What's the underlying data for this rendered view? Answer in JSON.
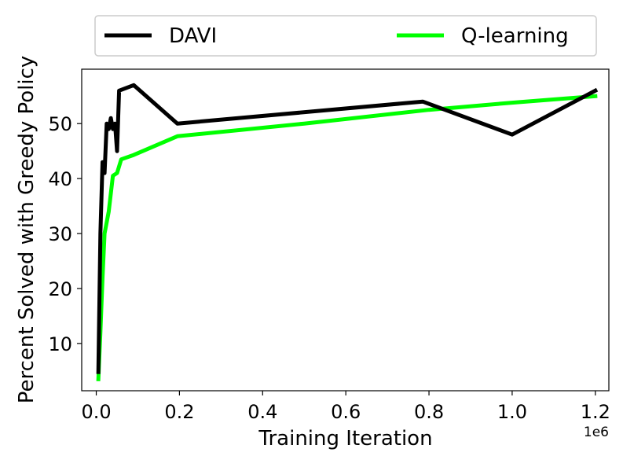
{
  "chart_data": {
    "type": "line",
    "title": "",
    "xlabel": "Training Iteration",
    "ylabel": "Percent Solved with Greedy Policy",
    "x_offset_text": "1e6",
    "xlim": [
      -0.035,
      1.2325
    ],
    "ylim": [
      1.4,
      59.9
    ],
    "xticks": [
      0.0,
      0.2,
      0.4,
      0.6,
      0.8,
      1.0,
      1.2
    ],
    "xtick_labels": [
      "0.0",
      "0.2",
      "0.4",
      "0.6",
      "0.8",
      "1.0",
      "1.2"
    ],
    "yticks": [
      10,
      20,
      30,
      40,
      50
    ],
    "ytick_labels": [
      "10",
      "20",
      "30",
      "40",
      "50"
    ],
    "grid": false,
    "legend_position": "top, outside, two columns",
    "series": [
      {
        "name": "DAVI",
        "color": "#000000",
        "x": [
          0.005,
          0.01,
          0.015,
          0.02,
          0.025,
          0.03,
          0.035,
          0.04,
          0.045,
          0.05,
          0.055,
          0.09,
          0.195,
          0.785,
          1.0,
          1.2
        ],
        "y": [
          4.8,
          30,
          43,
          41,
          50,
          49,
          51,
          49,
          50,
          45,
          56,
          57,
          50,
          54,
          48,
          56
        ]
      },
      {
        "name": "Q-learning",
        "color": "#00ff00",
        "x": [
          0.005,
          0.01,
          0.015,
          0.02,
          0.03,
          0.04,
          0.05,
          0.06,
          0.09,
          0.195,
          0.5,
          0.8,
          1.0,
          1.2
        ],
        "y": [
          3.5,
          12,
          22,
          30,
          34,
          40.5,
          41,
          43.5,
          44.3,
          47.7,
          50,
          52.5,
          53.8,
          55
        ]
      }
    ]
  }
}
